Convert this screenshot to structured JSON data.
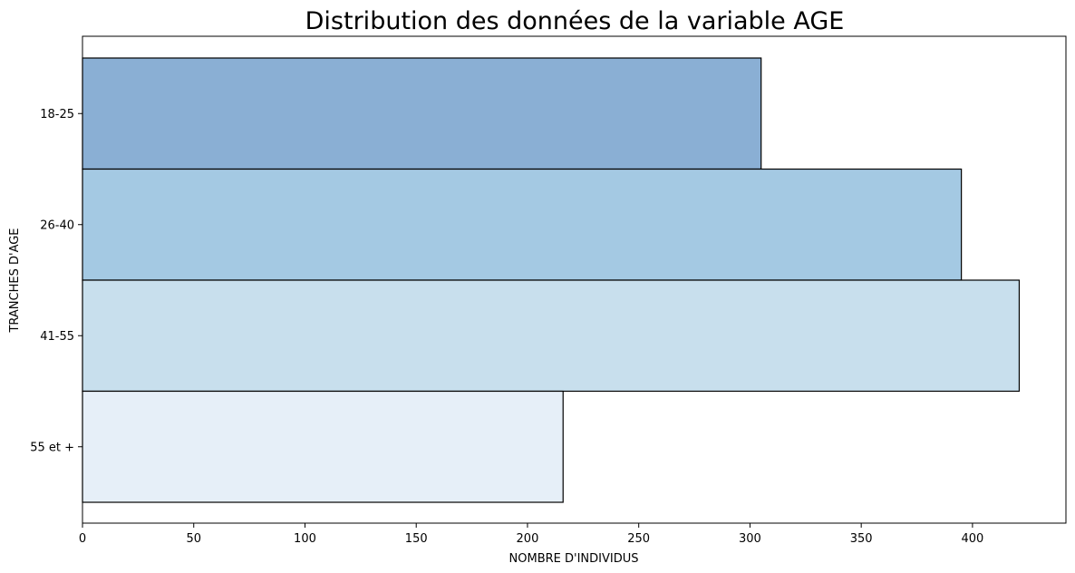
{
  "chart_data": {
    "type": "bar",
    "orientation": "horizontal",
    "title": "Distribution des données de la variable AGE",
    "xlabel": "NOMBRE D'INDIVIDUS",
    "ylabel": "TRANCHES D'AGE",
    "categories": [
      "18-25",
      "26-40",
      "41-55",
      "55 et +"
    ],
    "values": [
      305,
      395,
      421,
      216
    ],
    "colors": [
      "#8aafd4",
      "#a4c9e3",
      "#c8dfed",
      "#e6eff8"
    ],
    "edge_color": "#000000",
    "xlim": [
      0,
      442
    ],
    "xticks": [
      0,
      50,
      100,
      150,
      200,
      250,
      300,
      350,
      400
    ],
    "grid": false
  }
}
